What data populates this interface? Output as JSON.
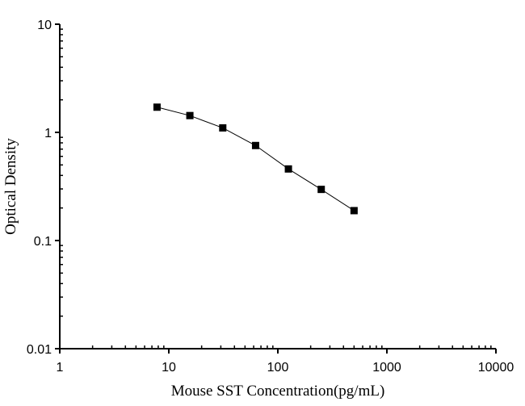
{
  "chart_data": {
    "type": "line",
    "title": "",
    "xlabel": "Mouse SST Concentration(pg/mL)",
    "ylabel": "Optical Density",
    "x_scale": "log",
    "y_scale": "log",
    "xlim": [
      1,
      10000
    ],
    "ylim": [
      0.01,
      10
    ],
    "x_ticks": [
      "1",
      "10",
      "100",
      "1000",
      "10000"
    ],
    "y_ticks": [
      "0.01",
      "0.1",
      "1",
      "10"
    ],
    "grid": false,
    "marker": "square",
    "color": "#000000",
    "series": [
      {
        "x": [
          7.8,
          15.6,
          31.25,
          62.5,
          125,
          250,
          500
        ],
        "y": [
          1.71,
          1.43,
          1.1,
          0.756,
          0.459,
          0.297,
          0.189
        ]
      }
    ]
  }
}
